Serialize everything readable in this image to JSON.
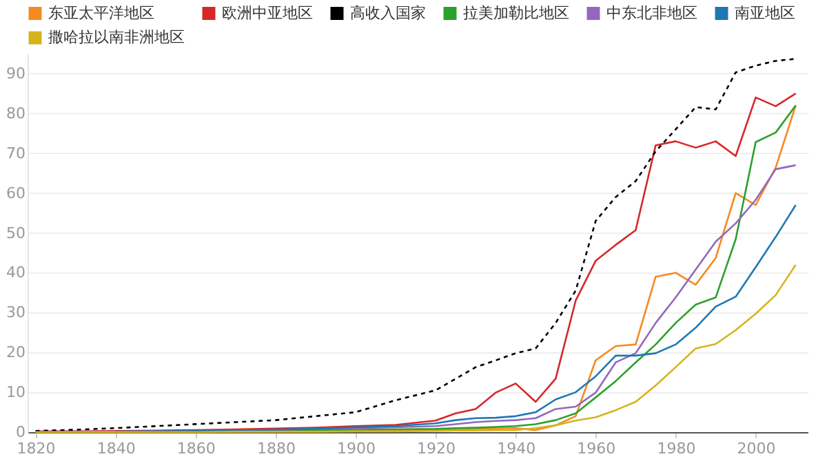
{
  "chart_data": {
    "type": "line",
    "x": [
      1820,
      1830,
      1840,
      1850,
      1860,
      1870,
      1880,
      1890,
      1900,
      1910,
      1920,
      1925,
      1930,
      1935,
      1940,
      1945,
      1950,
      1955,
      1960,
      1965,
      1970,
      1975,
      1980,
      1985,
      1990,
      1995,
      2000,
      2005,
      2010
    ],
    "series": [
      {
        "name": "东亚太平洋地区",
        "color": "#f58a20",
        "values": [
          null,
          null,
          null,
          null,
          0.1,
          0.1,
          0.2,
          0.2,
          0.3,
          0.4,
          0.6,
          0.7,
          0.8,
          0.9,
          1,
          0.5,
          1.7,
          4,
          18,
          21.6,
          22,
          39,
          40,
          37,
          43.7,
          60,
          57,
          66.4,
          82
        ]
      },
      {
        "name": "欧洲中亚地区",
        "color": "#d62728",
        "values": [
          0.2,
          0.2,
          0.3,
          0.4,
          0.5,
          0.7,
          0.9,
          1.1,
          1.5,
          1.8,
          2.9,
          4.7,
          5.8,
          9.9,
          12.2,
          7.6,
          13.4,
          33,
          43,
          47,
          50.7,
          72,
          73,
          71.4,
          73,
          69.3,
          84,
          81.8,
          85
        ]
      },
      {
        "name": "高收入国家",
        "color": "#000000",
        "line_style": "dashed",
        "values": [
          0.3,
          0.6,
          1,
          1.5,
          2,
          2.5,
          3,
          4,
          5,
          8,
          10.5,
          13.4,
          16.3,
          18,
          19.8,
          21,
          27.4,
          35.5,
          53,
          59,
          63,
          70.5,
          76,
          81.6,
          81,
          90.3,
          92,
          93.2,
          93.7
        ]
      },
      {
        "name": "拉美加勒比地区",
        "color": "#2ca02c",
        "values": [
          null,
          null,
          null,
          null,
          null,
          0.3,
          0.4,
          0.5,
          0.6,
          0.7,
          0.8,
          1,
          1.1,
          1.3,
          1.5,
          2,
          3,
          4.7,
          8.7,
          12.8,
          17.5,
          22,
          27.4,
          32,
          33.8,
          48.4,
          72.8,
          75.2,
          82
        ]
      },
      {
        "name": "中东北非地区",
        "color": "#9467bd",
        "values": [
          0,
          0.1,
          0.1,
          0.2,
          0.3,
          0.4,
          0.6,
          0.8,
          1,
          1.2,
          1.5,
          2,
          2.5,
          2.8,
          3,
          3.5,
          5.8,
          6.4,
          9.9,
          17.5,
          19.8,
          27.4,
          33.8,
          40.8,
          47.8,
          52.4,
          58.3,
          66,
          67
        ]
      },
      {
        "name": "南亚地区",
        "color": "#1f77b4",
        "values": [
          null,
          null,
          0.1,
          0.2,
          0.3,
          0.4,
          0.6,
          0.8,
          1.2,
          1.5,
          2.2,
          3,
          3.5,
          3.6,
          4,
          5,
          8.2,
          10,
          14,
          19.2,
          19.2,
          19.8,
          22,
          26.2,
          31.5,
          34,
          41.4,
          49,
          57
        ]
      },
      {
        "name": "撒哈拉以南非洲地区",
        "color": "#d4b41c",
        "values": [
          0,
          0,
          0,
          0,
          0,
          0.1,
          0.1,
          0.1,
          0.2,
          0.2,
          0.3,
          0.4,
          0.4,
          0.5,
          0.5,
          1,
          1.7,
          2.9,
          3.7,
          5.5,
          7.6,
          11.7,
          16.3,
          21,
          22.1,
          25.6,
          29.7,
          34.4,
          42
        ]
      }
    ],
    "xlim": [
      1818,
      2013
    ],
    "xticks": [
      1820,
      1840,
      1860,
      1880,
      1900,
      1920,
      1940,
      1960,
      1980,
      2000
    ],
    "ylim": [
      0,
      95
    ],
    "yticks": [
      0,
      10,
      20,
      30,
      40,
      50,
      60,
      70,
      80,
      90
    ],
    "grid": "y",
    "legend": "top left",
    "marker": "none"
  }
}
